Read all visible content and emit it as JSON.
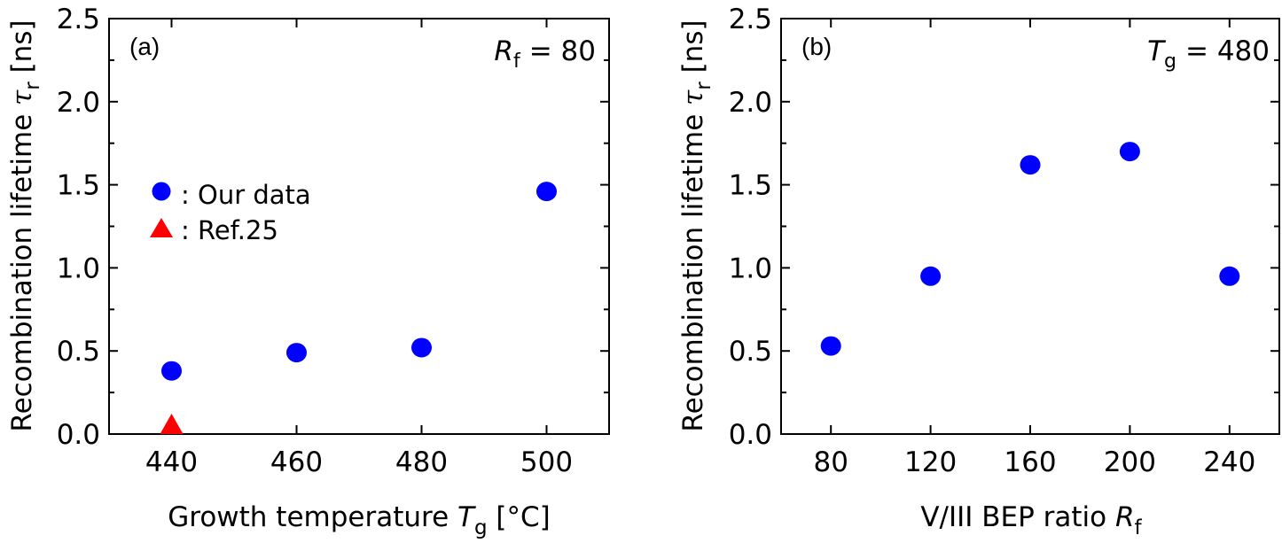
{
  "figure": {
    "panels": [
      {
        "id": "a",
        "label": "(a)",
        "param_symbol": "R",
        "param_sub": "f",
        "param_value": "= 80",
        "xlabel_text": "Growth temperature ",
        "xlabel_symbol": "T",
        "xlabel_sub": "g",
        "xlabel_unit": " [°C]",
        "ylabel_text": "Recombination lifetime ",
        "ylabel_symbol": "τ",
        "ylabel_sub": "r",
        "ylabel_unit": " [ns]",
        "legend": [
          {
            "marker": "circle",
            "color": "#0000ff",
            "label": ": Our data"
          },
          {
            "marker": "triangle",
            "color": "#ff0000",
            "label": ": Ref.25"
          }
        ]
      },
      {
        "id": "b",
        "label": "(b)",
        "param_symbol": "T",
        "param_sub": "g",
        "param_value": "= 480",
        "xlabel_text": "V/III BEP ratio ",
        "xlabel_symbol": "R",
        "xlabel_sub": "f",
        "xlabel_unit": "",
        "ylabel_text": "Recombination lifetime ",
        "ylabel_symbol": "τ",
        "ylabel_sub": "r",
        "ylabel_unit": " [ns]"
      }
    ]
  },
  "chart_data": [
    {
      "type": "scatter",
      "title": "(a)",
      "annotation": "Rf = 80",
      "xlabel": "Growth temperature Tg [°C]",
      "ylabel": "Recombination lifetime τr [ns]",
      "xlim": [
        430,
        510
      ],
      "ylim": [
        0,
        2.5
      ],
      "xticks": [
        440,
        460,
        480,
        500
      ],
      "yticks": [
        0.0,
        0.5,
        1.0,
        1.5,
        2.0,
        2.5
      ],
      "ytick_labels": [
        "0.0",
        "0.5",
        "1.0",
        "1.5",
        "2.0",
        "2.5"
      ],
      "grid": false,
      "legend_position": "center-left",
      "series": [
        {
          "name": "Our data",
          "marker": "circle",
          "color": "#0000ff",
          "x": [
            440,
            460,
            480,
            500
          ],
          "y": [
            0.38,
            0.49,
            0.52,
            1.46
          ]
        },
        {
          "name": "Ref.25",
          "marker": "triangle",
          "color": "#ff0000",
          "x": [
            440
          ],
          "y": [
            0.03
          ]
        }
      ]
    },
    {
      "type": "scatter",
      "title": "(b)",
      "annotation": "Tg = 480",
      "xlabel": "V/III BEP ratio Rf",
      "ylabel": "Recombination lifetime τr [ns]",
      "xlim": [
        60,
        260
      ],
      "ylim": [
        0,
        2.5
      ],
      "xticks": [
        80,
        120,
        160,
        200,
        240
      ],
      "yticks": [
        0.0,
        0.5,
        1.0,
        1.5,
        2.0,
        2.5
      ],
      "ytick_labels": [
        "0.0",
        "0.5",
        "1.0",
        "1.5",
        "2.0",
        "2.5"
      ],
      "grid": false,
      "series": [
        {
          "name": "Our data",
          "marker": "circle",
          "color": "#0000ff",
          "x": [
            80,
            120,
            160,
            200,
            240
          ],
          "y": [
            0.53,
            0.95,
            1.62,
            1.7,
            0.95
          ]
        }
      ]
    }
  ]
}
